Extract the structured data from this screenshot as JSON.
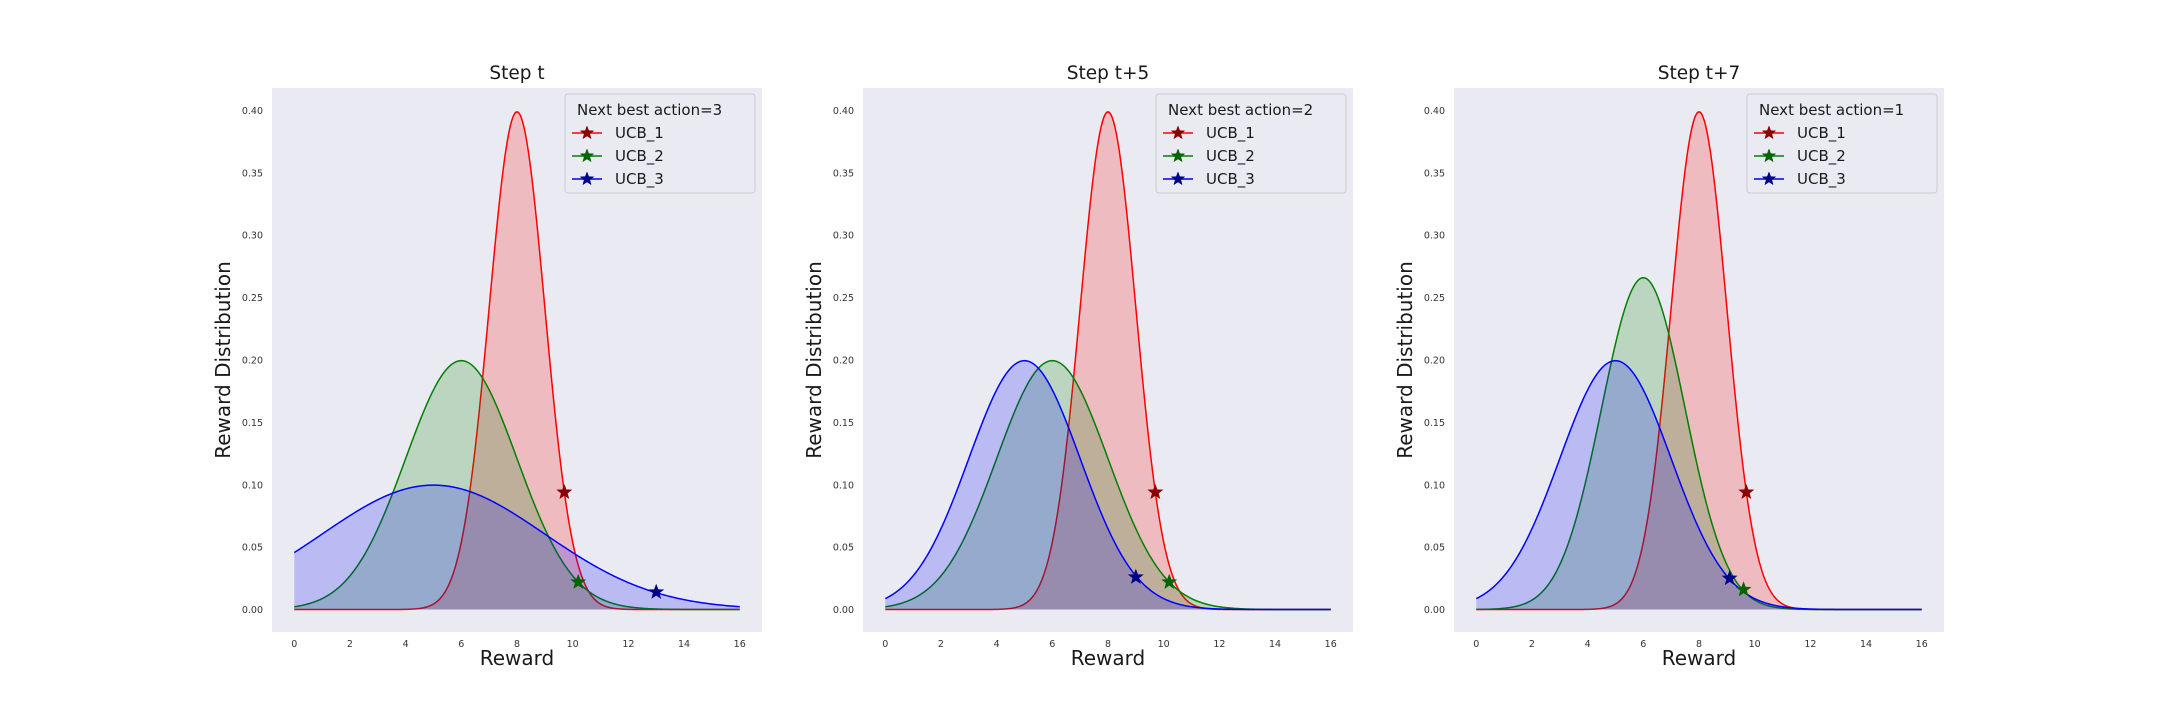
{
  "chart_data": [
    {
      "type": "area",
      "title": "Step t",
      "xlabel": "Reward",
      "ylabel": "Reward Distribution",
      "xlim": [
        -0.8,
        16.8
      ],
      "ylim": [
        -0.018,
        0.418
      ],
      "xticks": [
        0,
        2,
        4,
        6,
        8,
        10,
        12,
        14,
        16
      ],
      "yticks": [
        0.0,
        0.05,
        0.1,
        0.15,
        0.2,
        0.25,
        0.3,
        0.35,
        0.4
      ],
      "legend_title": "Next best action=3",
      "legend_position": "top-right",
      "grid": false,
      "series": [
        {
          "name": "UCB_1",
          "mean": 8,
          "std": 1,
          "ucb_x": 9.7,
          "ucb_y": 0.094,
          "line_color": "#ff0000",
          "fill_color": "#ff0000",
          "marker_color": "#8b0000"
        },
        {
          "name": "UCB_2",
          "mean": 6,
          "std": 2,
          "ucb_x": 10.2,
          "ucb_y": 0.022,
          "line_color": "#008000",
          "fill_color": "#008000",
          "marker_color": "#006400"
        },
        {
          "name": "UCB_3",
          "mean": 5,
          "std": 4,
          "ucb_x": 13.0,
          "ucb_y": 0.014,
          "line_color": "#0000ff",
          "fill_color": "#0000ff",
          "marker_color": "#00008b"
        }
      ]
    },
    {
      "type": "area",
      "title": "Step t+5",
      "xlabel": "Reward",
      "ylabel": "Reward Distribution",
      "xlim": [
        -0.8,
        16.8
      ],
      "ylim": [
        -0.018,
        0.418
      ],
      "xticks": [
        0,
        2,
        4,
        6,
        8,
        10,
        12,
        14,
        16
      ],
      "yticks": [
        0.0,
        0.05,
        0.1,
        0.15,
        0.2,
        0.25,
        0.3,
        0.35,
        0.4
      ],
      "legend_title": "Next best action=2",
      "legend_position": "top-right",
      "grid": false,
      "series": [
        {
          "name": "UCB_1",
          "mean": 8,
          "std": 1,
          "ucb_x": 9.7,
          "ucb_y": 0.094,
          "line_color": "#ff0000",
          "fill_color": "#ff0000",
          "marker_color": "#8b0000"
        },
        {
          "name": "UCB_2",
          "mean": 6,
          "std": 2,
          "ucb_x": 10.2,
          "ucb_y": 0.022,
          "line_color": "#008000",
          "fill_color": "#008000",
          "marker_color": "#006400"
        },
        {
          "name": "UCB_3",
          "mean": 5,
          "std": 2,
          "ucb_x": 9.0,
          "ucb_y": 0.026,
          "line_color": "#0000ff",
          "fill_color": "#0000ff",
          "marker_color": "#00008b"
        }
      ]
    },
    {
      "type": "area",
      "title": "Step t+7",
      "xlabel": "Reward",
      "ylabel": "Reward Distribution",
      "xlim": [
        -0.8,
        16.8
      ],
      "ylim": [
        -0.018,
        0.418
      ],
      "xticks": [
        0,
        2,
        4,
        6,
        8,
        10,
        12,
        14,
        16
      ],
      "yticks": [
        0.0,
        0.05,
        0.1,
        0.15,
        0.2,
        0.25,
        0.3,
        0.35,
        0.4
      ],
      "legend_title": "Next best action=1",
      "legend_position": "top-right",
      "grid": false,
      "series": [
        {
          "name": "UCB_1",
          "mean": 8,
          "std": 1,
          "ucb_x": 9.7,
          "ucb_y": 0.094,
          "line_color": "#ff0000",
          "fill_color": "#ff0000",
          "marker_color": "#8b0000"
        },
        {
          "name": "UCB_2",
          "mean": 6,
          "std": 1.5,
          "ucb_x": 9.6,
          "ucb_y": 0.016,
          "line_color": "#008000",
          "fill_color": "#008000",
          "marker_color": "#006400"
        },
        {
          "name": "UCB_3",
          "mean": 5,
          "std": 2,
          "ucb_x": 9.1,
          "ucb_y": 0.025,
          "line_color": "#0000ff",
          "fill_color": "#0000ff",
          "marker_color": "#00008b"
        }
      ]
    }
  ]
}
